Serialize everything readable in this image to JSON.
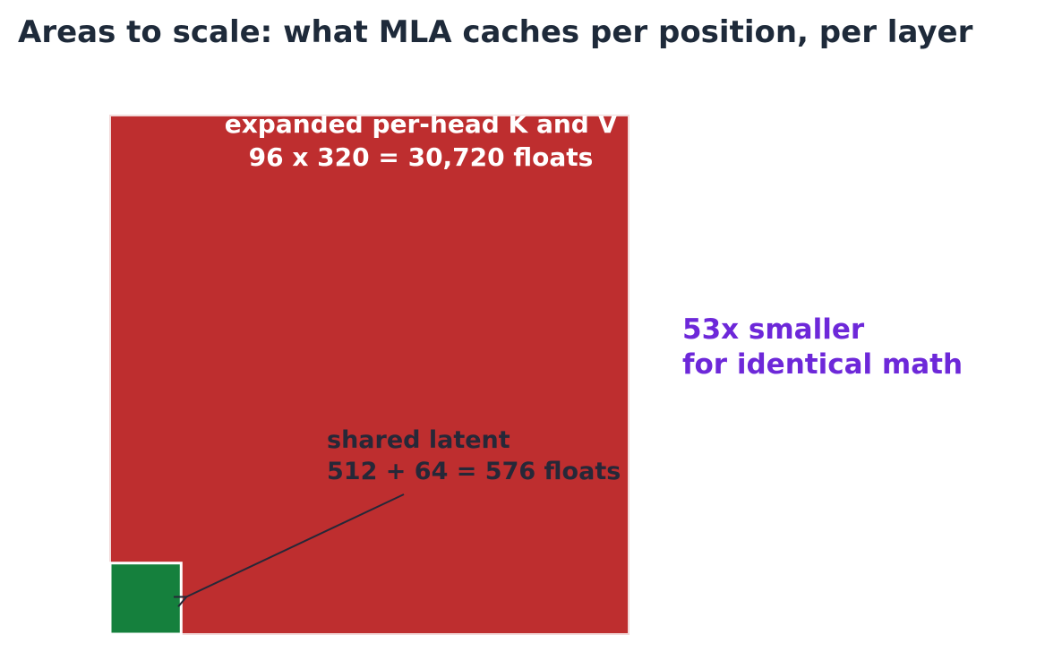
{
  "chart_data": {
    "type": "area",
    "title": "Areas to scale: what MLA caches per position, per layer",
    "series": [
      {
        "key": "expanded",
        "label_lines": [
          "expanded per-head K and V",
          "96 x 320 = 30,720 floats"
        ],
        "rows": 96,
        "cols": 320,
        "value": 30720,
        "color": "#be2e2f"
      },
      {
        "key": "latent",
        "label_lines": [
          "shared latent",
          "512 + 64 = 576 floats"
        ],
        "parts": [
          512,
          64
        ],
        "value": 576,
        "color": "#15803d"
      }
    ],
    "ratio_annotation": [
      "53x smaller",
      "for identical math"
    ],
    "colors": {
      "title": "#1e2a3a",
      "annotation_text": "#262838",
      "ratio_text": "#6d28d9",
      "arrow": "#262838"
    }
  }
}
